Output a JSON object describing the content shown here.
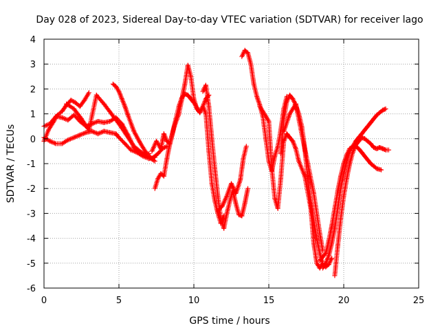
{
  "chart_data": {
    "type": "scatter",
    "title": "Day 028 of 2023, Sidereal Day-to-day VTEC variation (SDTVAR) for receiver lago",
    "xlabel": "GPS time / hours",
    "ylabel": "SDTVAR / TECUs",
    "xlim": [
      0,
      25
    ],
    "ylim": [
      -6,
      4
    ],
    "xticks": [
      "0",
      "5",
      "10",
      "15",
      "20",
      "25"
    ],
    "yticks": [
      "-6",
      "-5",
      "-4",
      "-3",
      "-2",
      "-1",
      "0",
      "1",
      "2",
      "3",
      "4"
    ],
    "grid": true,
    "marker": "+",
    "colors": {
      "series": "#ff0000",
      "grid": "#a0a0a0",
      "axis": "#000000"
    },
    "series": [
      {
        "x": [
          0.0,
          0.3,
          0.6,
          0.9,
          1.2,
          1.5,
          1.8,
          2.1,
          2.4,
          2.7,
          3.0
        ],
        "y": [
          -0.1,
          0.35,
          0.65,
          0.95,
          1.1,
          1.35,
          1.55,
          1.45,
          1.3,
          1.55,
          1.85
        ]
      },
      {
        "x": [
          0.0,
          0.4,
          0.8,
          1.2,
          1.6,
          2.0,
          2.4,
          2.8,
          3.2,
          3.6,
          4.0,
          4.4,
          4.8,
          5.2,
          5.6,
          6.0,
          6.5,
          7.0
        ],
        "y": [
          0.5,
          0.6,
          0.9,
          0.85,
          0.75,
          0.95,
          0.7,
          0.5,
          0.6,
          0.7,
          0.65,
          0.7,
          0.85,
          0.6,
          0.15,
          -0.35,
          -0.6,
          -0.6
        ]
      },
      {
        "x": [
          0.0,
          0.4,
          0.8,
          1.2,
          1.6,
          2.0,
          2.4,
          2.8,
          3.2,
          3.6,
          4.0,
          4.4,
          4.8,
          5.0,
          5.4,
          5.8,
          6.2,
          6.6,
          7.0,
          7.4
        ],
        "y": [
          0.05,
          -0.1,
          -0.2,
          -0.2,
          -0.05,
          0.05,
          0.15,
          0.25,
          0.3,
          0.2,
          0.3,
          0.25,
          0.2,
          0.05,
          -0.2,
          -0.45,
          -0.55,
          -0.7,
          -0.8,
          -0.75
        ]
      },
      {
        "x": [
          1.5,
          2.0,
          2.5,
          3.0,
          3.5,
          4.0,
          4.5,
          5.0,
          5.5,
          6.0,
          6.5,
          7.0,
          7.4
        ],
        "y": [
          1.4,
          1.2,
          0.8,
          0.35,
          1.75,
          1.4,
          1.0,
          0.6,
          0.15,
          -0.3,
          -0.55,
          -0.75,
          -0.9
        ]
      },
      {
        "x": [
          4.6,
          4.8,
          5.0,
          5.2,
          5.4,
          5.6,
          6.0,
          6.4,
          6.8,
          7.2,
          7.6,
          7.9,
          8.2
        ],
        "y": [
          2.2,
          2.1,
          1.9,
          1.6,
          1.3,
          0.95,
          0.3,
          -0.15,
          -0.55,
          -0.8,
          -0.6,
          -0.4,
          -0.3
        ]
      },
      {
        "x": [
          7.2,
          7.5,
          7.8,
          8.0,
          8.2,
          8.4,
          8.7,
          9.0,
          9.2,
          9.4,
          9.6,
          9.8,
          10.0,
          10.2,
          10.4,
          10.6,
          10.8,
          11.0,
          11.2,
          11.4,
          11.6,
          11.8,
          12.0
        ],
        "y": [
          -0.5,
          -0.1,
          -0.4,
          0.2,
          -0.1,
          -0.2,
          0.5,
          1.0,
          1.6,
          2.2,
          2.95,
          2.5,
          1.6,
          1.2,
          1.05,
          1.3,
          1.0,
          -0.5,
          -1.8,
          -2.5,
          -3.0,
          -3.4,
          -3.1
        ]
      },
      {
        "x": [
          7.4,
          7.6,
          7.8,
          8.0,
          8.2,
          8.4,
          8.6,
          8.8,
          9.0,
          9.2,
          9.4,
          9.6,
          9.8,
          10.0,
          10.2,
          10.4,
          10.6,
          10.8,
          11.0
        ],
        "y": [
          -2.0,
          -1.6,
          -1.4,
          -1.5,
          -0.8,
          -0.2,
          0.3,
          0.8,
          1.3,
          1.65,
          1.8,
          1.75,
          1.6,
          1.45,
          1.25,
          1.05,
          1.3,
          1.6,
          1.75
        ]
      },
      {
        "x": [
          10.6,
          10.8,
          11.0,
          11.2,
          11.4,
          11.6,
          11.8,
          12.0,
          12.2,
          12.4,
          12.6,
          12.8,
          13.0,
          13.2,
          13.4,
          13.6
        ],
        "y": [
          1.9,
          2.15,
          1.3,
          0.0,
          -1.2,
          -2.3,
          -3.2,
          -3.6,
          -3.0,
          -2.5,
          -2.1,
          -2.6,
          -3.05,
          -3.1,
          -2.6,
          -2.0
        ]
      },
      {
        "x": [
          11.6,
          11.9,
          12.2,
          12.5,
          12.8,
          13.1,
          13.3,
          13.5
        ],
        "y": [
          -2.9,
          -2.7,
          -2.3,
          -1.8,
          -2.2,
          -1.65,
          -0.8,
          -0.3
        ]
      },
      {
        "x": [
          13.2,
          13.4,
          13.6,
          13.8,
          14.0,
          14.2,
          14.4,
          14.6,
          14.8,
          15.0,
          15.2,
          15.4,
          15.6,
          15.8,
          16.0,
          16.2
        ],
        "y": [
          3.3,
          3.55,
          3.45,
          3.0,
          2.2,
          1.7,
          1.35,
          0.9,
          0.0,
          -0.9,
          -1.3,
          -0.7,
          -0.3,
          0.35,
          1.2,
          1.7
        ]
      },
      {
        "x": [
          14.4,
          14.6,
          14.8,
          15.0,
          15.2,
          15.4,
          15.6,
          15.8,
          16.0,
          16.2,
          16.4,
          16.6,
          16.8,
          17.0,
          17.4,
          17.8,
          18.0,
          18.2,
          18.4,
          18.6
        ],
        "y": [
          1.3,
          1.1,
          0.9,
          0.7,
          -1.2,
          -2.4,
          -2.8,
          -1.6,
          -0.1,
          0.2,
          0.05,
          -0.1,
          -0.4,
          -0.9,
          -1.5,
          -2.8,
          -4.2,
          -5.0,
          -5.2,
          -5.0
        ]
      },
      {
        "x": [
          15.8,
          16.0,
          16.2,
          16.4,
          16.6,
          16.8,
          17.0,
          17.2,
          17.4,
          17.6,
          17.8,
          18.0,
          18.2,
          18.4,
          18.6,
          18.8,
          19.0,
          19.2
        ],
        "y": [
          -0.6,
          0.8,
          1.5,
          1.75,
          1.6,
          1.35,
          1.0,
          0.5,
          -0.4,
          -1.6,
          -2.6,
          -3.3,
          -4.0,
          -4.6,
          -5.05,
          -5.15,
          -5.05,
          -4.8
        ]
      },
      {
        "x": [
          16.0,
          16.4,
          16.8,
          17.2,
          17.6,
          18.0,
          18.4,
          18.6
        ],
        "y": [
          0.3,
          1.0,
          1.4,
          0.2,
          -1.0,
          -2.2,
          -3.8,
          -4.5
        ]
      },
      {
        "x": [
          18.6,
          18.8,
          19.0,
          19.2,
          19.4,
          19.6,
          19.8,
          20.0,
          20.2,
          20.4,
          20.6,
          20.8,
          21.0,
          21.2,
          21.4,
          21.6,
          21.8,
          22.0,
          22.2,
          22.4,
          22.6,
          22.8
        ],
        "y": [
          -5.2,
          -5.0,
          -4.7,
          -4.2,
          -3.6,
          -2.8,
          -2.0,
          -1.4,
          -0.9,
          -0.5,
          -0.3,
          -0.1,
          0.05,
          0.2,
          0.35,
          0.5,
          0.65,
          0.8,
          0.95,
          1.05,
          1.15,
          1.2
        ]
      },
      {
        "x": [
          18.4,
          18.8,
          19.0,
          19.2,
          19.4,
          19.6,
          19.8,
          20.0,
          20.2,
          20.4,
          20.6,
          20.8,
          21.0,
          21.2,
          21.4,
          21.6,
          21.8,
          22.0,
          22.2,
          22.5
        ],
        "y": [
          -4.9,
          -4.6,
          -4.1,
          -3.5,
          -2.8,
          -2.1,
          -1.5,
          -1.0,
          -0.65,
          -0.4,
          -0.3,
          -0.3,
          -0.4,
          -0.55,
          -0.7,
          -0.85,
          -1.0,
          -1.1,
          -1.2,
          -1.25
        ]
      },
      {
        "x": [
          19.4,
          19.6,
          19.8,
          20.0,
          20.2,
          20.4,
          20.6,
          20.8,
          21.0,
          21.2,
          21.4,
          21.6,
          21.8,
          22.0,
          22.2,
          22.4,
          22.6,
          22.8,
          23.0
        ],
        "y": [
          -5.5,
          -4.3,
          -3.2,
          -2.3,
          -1.6,
          -1.0,
          -0.55,
          -0.25,
          -0.1,
          0.05,
          0.0,
          -0.1,
          -0.2,
          -0.35,
          -0.4,
          -0.35,
          -0.4,
          -0.45,
          -0.45
        ]
      }
    ]
  }
}
